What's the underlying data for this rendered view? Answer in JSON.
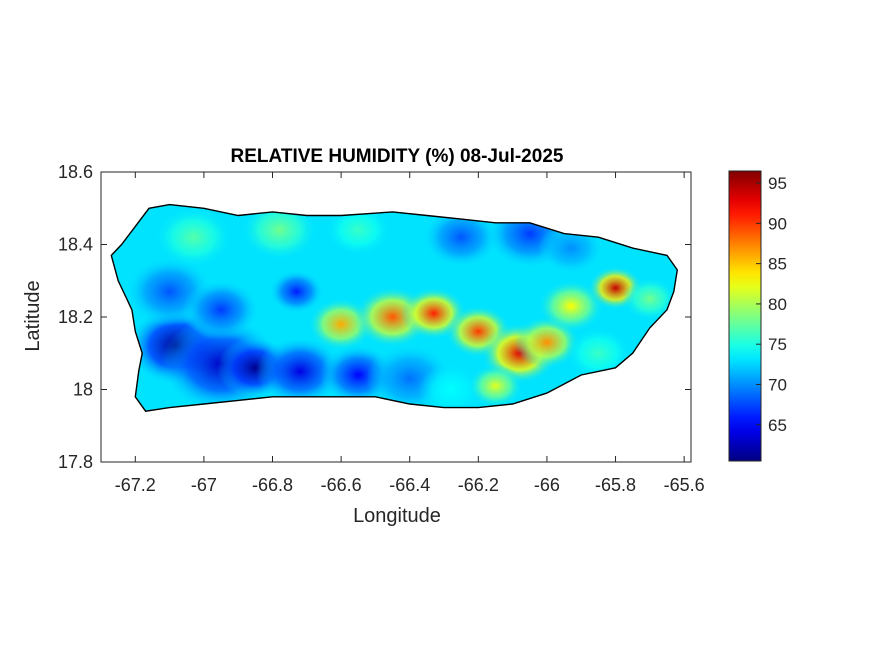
{
  "chart_data": {
    "type": "heatmap",
    "title": "RELATIVE HUMIDITY (%) 08-Jul-2025",
    "xlabel": "Longitude",
    "ylabel": "Latitude",
    "xlim": [
      -67.3,
      -65.58
    ],
    "ylim": [
      17.8,
      18.6
    ],
    "xticks": [
      -67.2,
      -67,
      -66.8,
      -66.6,
      -66.4,
      -66.2,
      -66,
      -65.8,
      -65.6
    ],
    "xtick_labels": [
      "-67.2",
      "-67",
      "-66.8",
      "-66.6",
      "-66.4",
      "-66.2",
      "-66",
      "-65.8",
      "-65.6"
    ],
    "yticks": [
      17.8,
      18,
      18.2,
      18.4,
      18.6
    ],
    "ytick_labels": [
      "17.8",
      "18",
      "18.2",
      "18.4",
      "18.6"
    ],
    "colorbar": {
      "colormap": "jet",
      "range": [
        60.5,
        96.5
      ],
      "ticks": [
        65,
        70,
        75,
        80,
        85,
        90,
        95
      ],
      "tick_labels": [
        "65",
        "70",
        "75",
        "80",
        "85",
        "90",
        "95"
      ]
    },
    "grid": false,
    "base_value": 73,
    "island_outline": [
      [
        -67.27,
        18.37
      ],
      [
        -67.24,
        18.4
      ],
      [
        -67.2,
        18.45
      ],
      [
        -67.16,
        18.5
      ],
      [
        -67.1,
        18.51
      ],
      [
        -67.0,
        18.5
      ],
      [
        -66.9,
        18.48
      ],
      [
        -66.8,
        18.49
      ],
      [
        -66.7,
        18.48
      ],
      [
        -66.6,
        18.48
      ],
      [
        -66.45,
        18.49
      ],
      [
        -66.35,
        18.48
      ],
      [
        -66.25,
        18.47
      ],
      [
        -66.15,
        18.46
      ],
      [
        -66.05,
        18.46
      ],
      [
        -65.95,
        18.43
      ],
      [
        -65.85,
        18.42
      ],
      [
        -65.75,
        18.39
      ],
      [
        -65.65,
        18.37
      ],
      [
        -65.62,
        18.33
      ],
      [
        -65.63,
        18.27
      ],
      [
        -65.65,
        18.22
      ],
      [
        -65.7,
        18.17
      ],
      [
        -65.75,
        18.1
      ],
      [
        -65.8,
        18.06
      ],
      [
        -65.9,
        18.04
      ],
      [
        -66.0,
        17.99
      ],
      [
        -66.1,
        17.96
      ],
      [
        -66.2,
        17.95
      ],
      [
        -66.3,
        17.95
      ],
      [
        -66.4,
        17.96
      ],
      [
        -66.5,
        17.98
      ],
      [
        -66.6,
        17.98
      ],
      [
        -66.7,
        17.98
      ],
      [
        -66.8,
        17.98
      ],
      [
        -66.9,
        17.97
      ],
      [
        -67.0,
        17.96
      ],
      [
        -67.1,
        17.95
      ],
      [
        -67.17,
        17.94
      ],
      [
        -67.2,
        17.98
      ],
      [
        -67.19,
        18.05
      ],
      [
        -67.18,
        18.1
      ],
      [
        -67.2,
        18.16
      ],
      [
        -67.21,
        18.22
      ],
      [
        -67.25,
        18.3
      ]
    ],
    "humidity_field": [
      {
        "lon": -67.08,
        "lat": 18.12,
        "value": 61,
        "radius": 0.09
      },
      {
        "lon": -66.95,
        "lat": 18.07,
        "value": 63,
        "radius": 0.11
      },
      {
        "lon": -66.85,
        "lat": 18.06,
        "value": 61,
        "radius": 0.07
      },
      {
        "lon": -66.72,
        "lat": 18.05,
        "value": 64,
        "radius": 0.08
      },
      {
        "lon": -66.55,
        "lat": 18.04,
        "value": 65,
        "radius": 0.07
      },
      {
        "lon": -66.4,
        "lat": 18.03,
        "value": 69,
        "radius": 0.08
      },
      {
        "lon": -67.1,
        "lat": 18.27,
        "value": 68,
        "radius": 0.08
      },
      {
        "lon": -66.95,
        "lat": 18.22,
        "value": 67,
        "radius": 0.07
      },
      {
        "lon": -66.73,
        "lat": 18.27,
        "value": 66,
        "radius": 0.05
      },
      {
        "lon": -66.25,
        "lat": 18.42,
        "value": 68,
        "radius": 0.07
      },
      {
        "lon": -66.05,
        "lat": 18.43,
        "value": 67,
        "radius": 0.08
      },
      {
        "lon": -65.93,
        "lat": 18.39,
        "value": 70,
        "radius": 0.06
      },
      {
        "lon": -66.6,
        "lat": 18.18,
        "value": 86,
        "radius": 0.06
      },
      {
        "lon": -66.45,
        "lat": 18.2,
        "value": 89,
        "radius": 0.07
      },
      {
        "lon": -66.33,
        "lat": 18.21,
        "value": 91,
        "radius": 0.06
      },
      {
        "lon": -66.2,
        "lat": 18.16,
        "value": 90,
        "radius": 0.06
      },
      {
        "lon": -66.08,
        "lat": 18.1,
        "value": 93,
        "radius": 0.07
      },
      {
        "lon": -66.0,
        "lat": 18.13,
        "value": 87,
        "radius": 0.06
      },
      {
        "lon": -65.93,
        "lat": 18.23,
        "value": 83,
        "radius": 0.06
      },
      {
        "lon": -65.8,
        "lat": 18.28,
        "value": 94,
        "radius": 0.05
      },
      {
        "lon": -65.7,
        "lat": 18.25,
        "value": 78,
        "radius": 0.05
      },
      {
        "lon": -67.03,
        "lat": 18.42,
        "value": 77,
        "radius": 0.07
      },
      {
        "lon": -66.78,
        "lat": 18.44,
        "value": 78,
        "radius": 0.07
      },
      {
        "lon": -66.55,
        "lat": 18.44,
        "value": 76,
        "radius": 0.06
      },
      {
        "lon": -66.28,
        "lat": 18.0,
        "value": 74,
        "radius": 0.06
      },
      {
        "lon": -66.15,
        "lat": 18.01,
        "value": 82,
        "radius": 0.05
      },
      {
        "lon": -65.85,
        "lat": 18.1,
        "value": 76,
        "radius": 0.06
      }
    ]
  }
}
